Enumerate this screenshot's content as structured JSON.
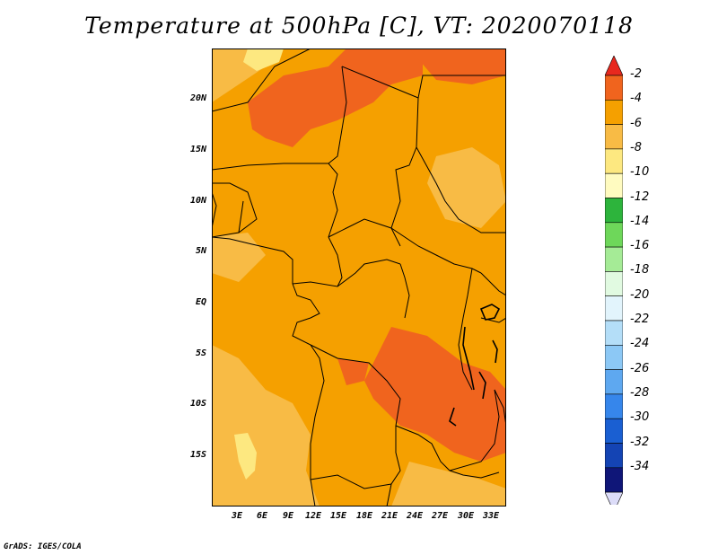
{
  "title": "Temperature at 500hPa [C], VT: 2020070118",
  "credit": "GrADS: IGES/COLA",
  "map": {
    "lat_labels": [
      "20N",
      "15N",
      "10N",
      "5N",
      "EQ",
      "5S",
      "10S",
      "15S"
    ],
    "lon_labels": [
      "3E",
      "6E",
      "9E",
      "12E",
      "15E",
      "18E",
      "21E",
      "24E",
      "27E",
      "30E",
      "33E"
    ],
    "fill_colors": {
      "t_-4_-2": "#f0641e",
      "t_-6_-4": "#f5a000",
      "t_-8_-6": "#f8bb45",
      "t_-10_-8": "#fde880"
    }
  },
  "colorbar": {
    "levels": [
      "-2",
      "-4",
      "-6",
      "-8",
      "-10",
      "-12",
      "-14",
      "-16",
      "-18",
      "-20",
      "-22",
      "-24",
      "-26",
      "-28",
      "-30",
      "-32",
      "-34"
    ],
    "colors": [
      "#e8281e",
      "#f0641e",
      "#f5a000",
      "#f8bb45",
      "#fde880",
      "#fffbc0",
      "#2db43c",
      "#6ed75a",
      "#a5eb96",
      "#e1fae1",
      "#e2f4fc",
      "#b4def8",
      "#8cc8f5",
      "#5ea8f0",
      "#3686eb",
      "#1a5fd2",
      "#1444b4",
      "#0f1678",
      "#dcdcf8"
    ]
  }
}
